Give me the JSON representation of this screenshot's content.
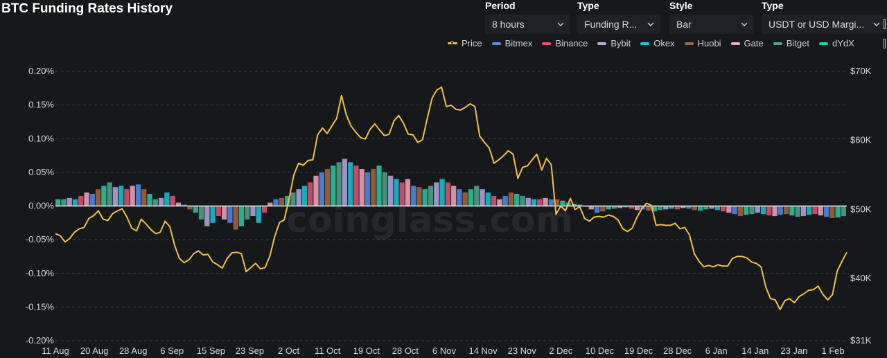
{
  "page": {
    "title": "BTC Funding Rates History"
  },
  "controls": [
    {
      "label": "Period",
      "value": "8 hours",
      "left": 700,
      "width": 123
    },
    {
      "label": "Type",
      "value": "Funding R...",
      "left": 833,
      "width": 120
    },
    {
      "label": "Style",
      "value": "Bar",
      "left": 966,
      "width": 122
    },
    {
      "label": "Type",
      "value": "USDT or USD Margi...",
      "left": 1099,
      "width": 180
    }
  ],
  "watermark": "coinglass.com",
  "colors": {
    "price": "#f0c048",
    "Bitmex": "#4d8ef0",
    "Binance": "#e0566e",
    "Bybit": "#b8a8e4",
    "Okex": "#1cc4d6",
    "Huobi": "#a8673a",
    "Gate": "#f2a8c0",
    "Bitget": "#4fa88c",
    "dYdX": "#2bc9a4",
    "grid": "#3a3c42",
    "zero_line": "#e8e8e8",
    "axis_text": "#d8d8d8"
  },
  "chart_data": {
    "type": "bar",
    "title": "BTC Funding Rates History",
    "legend": [
      "Price",
      "Bitmex",
      "Binance",
      "Bybit",
      "Okex",
      "Huobi",
      "Gate",
      "Bitget",
      "dYdX"
    ],
    "legend_position": "top-right",
    "y_left": {
      "ticks": [
        "0.20%",
        "0.15%",
        "0.10%",
        "0.05%",
        "0.00%",
        "-0.05%",
        "-0.10%",
        "-0.15%",
        "-0.20%"
      ],
      "range": [
        -0.2,
        0.2
      ],
      "unit": "%"
    },
    "y_right": {
      "ticks": [
        "$70K",
        "$60K",
        "$50K",
        "$40K",
        "$31K"
      ],
      "range": [
        31000,
        70000
      ],
      "scale": "linear"
    },
    "x_ticks": [
      "11 Aug",
      "20 Aug",
      "28 Aug",
      "6 Sep",
      "15 Sep",
      "23 Sep",
      "2 Oct",
      "11 Oct",
      "19 Oct",
      "28 Oct",
      "6 Nov",
      "14 Nov",
      "23 Nov",
      "2 Dec",
      "10 Dec",
      "19 Dec",
      "28 Dec",
      "6 Jan",
      "14 Jan",
      "23 Jan",
      "1 Feb"
    ],
    "grid": "horizontal dashed",
    "price_series": {
      "name": "Price",
      "values": [
        46500,
        46200,
        45300,
        45800,
        46700,
        47200,
        47400,
        48700,
        49100,
        49800,
        48600,
        48400,
        49400,
        49800,
        50100,
        48900,
        47300,
        46900,
        48600,
        47900,
        47100,
        46500,
        46700,
        48300,
        47500,
        44800,
        42900,
        42300,
        42700,
        43600,
        44000,
        43400,
        43500,
        42400,
        42000,
        41500,
        42900,
        43700,
        43800,
        43600,
        41000,
        41600,
        42200,
        41400,
        41600,
        43300,
        46100,
        48100,
        48500,
        51500,
        55000,
        56700,
        56400,
        57100,
        57200,
        60800,
        61800,
        61000,
        62100,
        63200,
        66500,
        63700,
        62100,
        61200,
        60400,
        60200,
        61600,
        62400,
        61500,
        60700,
        60900,
        62800,
        63600,
        62500,
        60900,
        60800,
        59700,
        60100,
        63200,
        66100,
        67300,
        67700,
        64900,
        65100,
        64500,
        64400,
        64800,
        65300,
        64900,
        60600,
        59700,
        58900,
        56700,
        57200,
        57800,
        58500,
        58000,
        54500,
        56100,
        56300,
        57200,
        58000,
        55700,
        57400,
        56500,
        49300,
        50500,
        49800,
        51600,
        50000,
        50400,
        48700,
        48300,
        48900,
        49000,
        48900,
        49200,
        49000,
        48500,
        47200,
        46800,
        47300,
        48900,
        50100,
        50900,
        50600,
        47700,
        47800,
        47700,
        47700,
        48000,
        47200,
        47400,
        46300,
        43600,
        42500,
        41700,
        41900,
        41700,
        42000,
        41800,
        41800,
        42900,
        43200,
        43200,
        43000,
        42400,
        42200,
        41700,
        38800,
        37100,
        36900,
        35500,
        36800,
        37100,
        36500,
        37400,
        37800,
        38300,
        38400,
        38900,
        37700,
        36900,
        37700,
        41100,
        42500,
        43800
      ]
    },
    "funding_rate_series": {
      "name": "Funding Rate",
      "unit": "%",
      "values": [
        0.01,
        0.01,
        0.012,
        0.01,
        0.015,
        0.02,
        0.018,
        0.025,
        0.03,
        0.035,
        0.028,
        0.03,
        0.025,
        0.03,
        0.032,
        0.025,
        0.018,
        0.01,
        0.012,
        0.02,
        0.015,
        0.005,
        0.002,
        -0.005,
        -0.01,
        -0.02,
        -0.03,
        -0.025,
        -0.015,
        -0.02,
        -0.025,
        -0.035,
        -0.03,
        -0.02,
        -0.015,
        -0.025,
        -0.01,
        0.005,
        0.01,
        0.012,
        0.015,
        0.02,
        0.025,
        0.03,
        0.035,
        0.045,
        0.05,
        0.055,
        0.06,
        0.065,
        0.07,
        0.065,
        0.06,
        0.055,
        0.05,
        0.055,
        0.06,
        0.05,
        0.045,
        0.04,
        0.035,
        0.04,
        0.03,
        0.028,
        0.025,
        0.03,
        0.035,
        0.04,
        0.035,
        0.03,
        0.025,
        0.02,
        0.025,
        0.03,
        0.025,
        0.02,
        0.015,
        0.01,
        0.015,
        0.02,
        0.018,
        0.015,
        0.012,
        0.01,
        0.01,
        0.012,
        0.01,
        0.01,
        0.008,
        0.005,
        0.003,
        0.002,
        0.0,
        -0.005,
        -0.01,
        -0.008,
        -0.005,
        -0.004,
        -0.003,
        -0.002,
        -0.004,
        -0.006,
        -0.005,
        -0.007,
        -0.008,
        -0.006,
        -0.005,
        -0.004,
        -0.005,
        -0.003,
        -0.004,
        -0.006,
        -0.007,
        -0.005,
        -0.004,
        -0.006,
        -0.008,
        -0.01,
        -0.012,
        -0.015,
        -0.013,
        -0.012,
        -0.01,
        -0.012,
        -0.014,
        -0.015,
        -0.013,
        -0.012,
        -0.014,
        -0.016,
        -0.015,
        -0.013,
        -0.012,
        -0.014,
        -0.016,
        -0.018,
        -0.017,
        -0.015
      ]
    }
  }
}
